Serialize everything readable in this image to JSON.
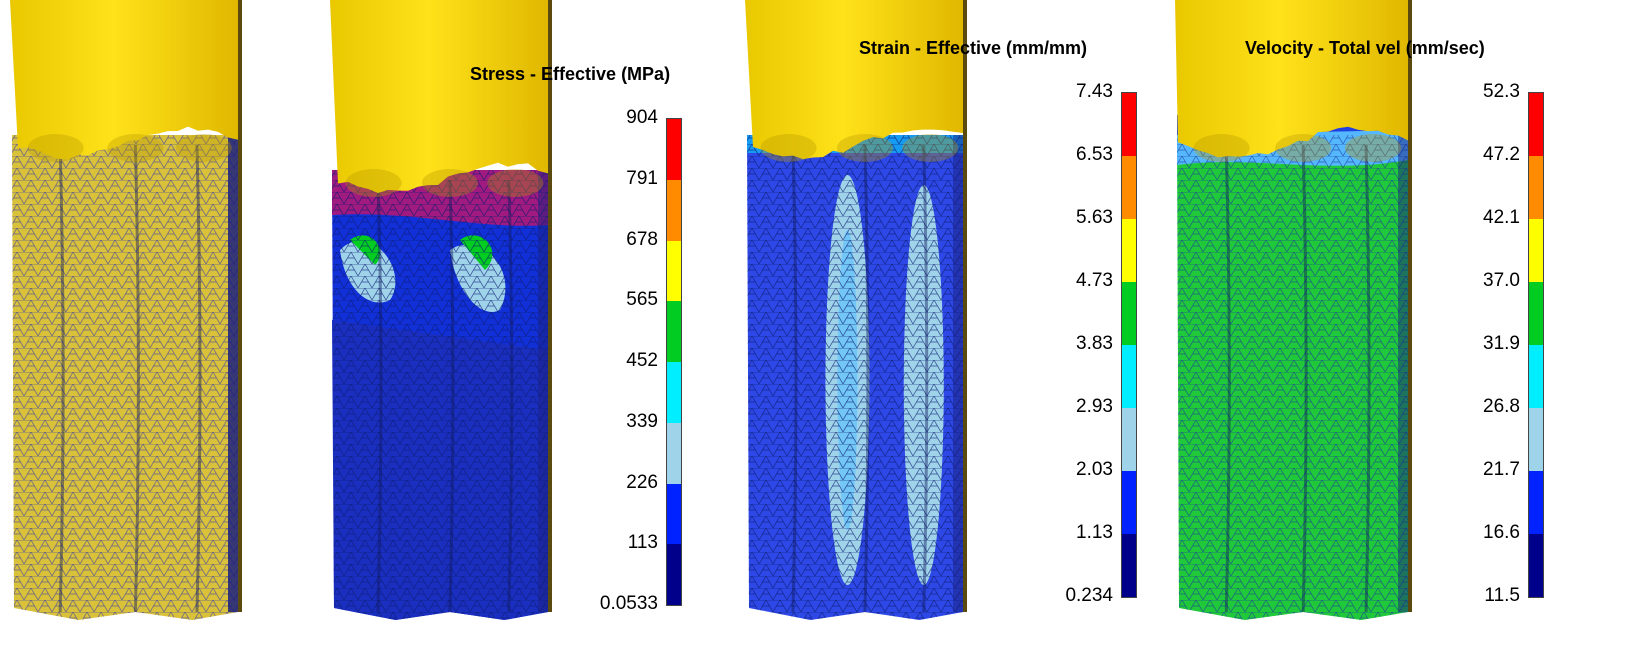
{
  "palette": [
    "#ff0000",
    "#ff8c00",
    "#ffff00",
    "#00cc22",
    "#00eeff",
    "#9fd3ea",
    "#0022ff",
    "#00008b"
  ],
  "panels": [
    {
      "id": "mesh",
      "scheme": "mesh"
    },
    {
      "id": "stress",
      "scheme": "stress",
      "title": "Stress - Effective (MPa)",
      "ticks": [
        "904",
        "791",
        "678",
        "565",
        "452",
        "339",
        "226",
        "113",
        "0.0533"
      ]
    },
    {
      "id": "strain",
      "scheme": "strain",
      "title": "Strain - Effective (mm/mm)",
      "ticks": [
        "7.43",
        "6.53",
        "5.63",
        "4.73",
        "3.83",
        "2.93",
        "2.03",
        "1.13",
        "0.234"
      ]
    },
    {
      "id": "velocity",
      "scheme": "velocity",
      "title": "Velocity - Total vel (mm/sec)",
      "ticks": [
        "52.3",
        "47.2",
        "42.1",
        "37.0",
        "31.9",
        "26.8",
        "21.7",
        "16.6",
        "11.5"
      ]
    }
  ]
}
